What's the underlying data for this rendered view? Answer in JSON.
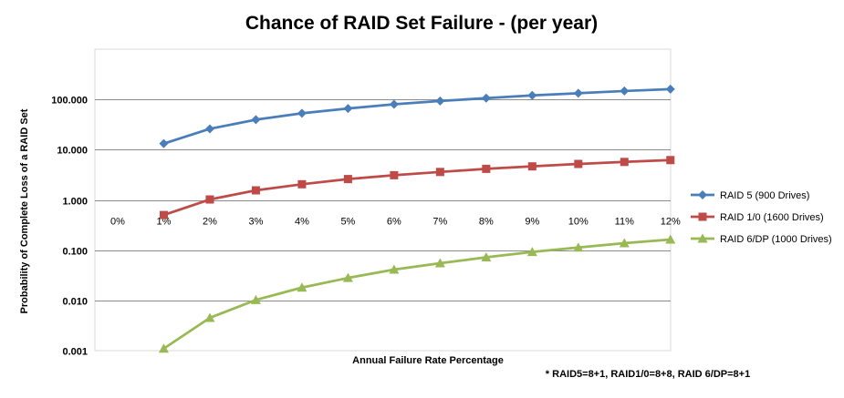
{
  "chart_data": {
    "type": "line",
    "title": "Chance of RAID Set Failure - (per year)",
    "xlabel": "Annual Failure Rate Percentage",
    "ylabel": "Probability of Complete Loss of a RAID Set",
    "footnote": "* RAID5=8+1, RAID1/0=8+8, RAID 6/DP=8+1",
    "y_scale": "log",
    "ylim": [
      0.001,
      1000
    ],
    "y_ticks": [
      0.001,
      0.01,
      0.1,
      1,
      10,
      100
    ],
    "y_tick_labels": [
      "0.001",
      "0.010",
      "0.100",
      "1.000",
      "10.000",
      "100.000"
    ],
    "categories": [
      "0%",
      "1%",
      "2%",
      "3%",
      "4%",
      "5%",
      "6%",
      "7%",
      "8%",
      "9%",
      "10%",
      "11%",
      "12%"
    ],
    "grid": true,
    "legend_position": "right",
    "series": [
      {
        "name": "RAID 5 (900 Drives)",
        "color": "#4a7ebb",
        "marker": "diamond",
        "values": [
          null,
          13.2,
          26,
          39.5,
          53,
          66,
          80,
          93,
          106,
          120,
          133,
          147,
          160
        ]
      },
      {
        "name": "RAID 1/0 (1600 Drives)",
        "color": "#be4b48",
        "marker": "square",
        "values": [
          null,
          0.5,
          1.02,
          1.55,
          2.05,
          2.6,
          3.1,
          3.6,
          4.15,
          4.65,
          5.2,
          5.7,
          6.2
        ]
      },
      {
        "name": "RAID 6/DP (1000 Drives)",
        "color": "#98b954",
        "marker": "triangle",
        "values": [
          null,
          0.0011,
          0.0045,
          0.0102,
          0.018,
          0.028,
          0.041,
          0.055,
          0.072,
          0.092,
          0.113,
          0.138,
          0.163
        ]
      }
    ]
  }
}
